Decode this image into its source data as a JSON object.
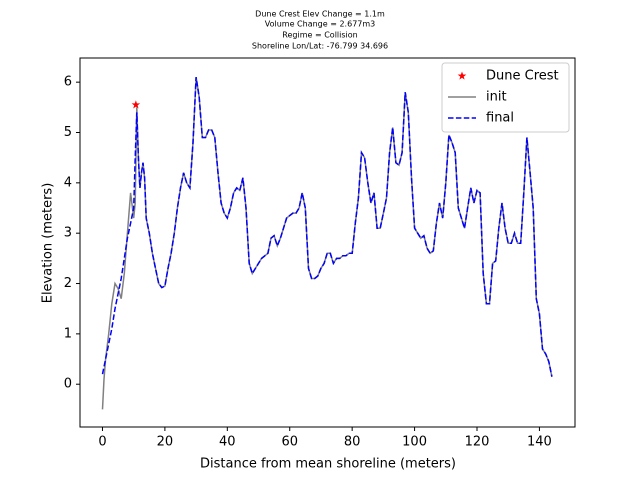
{
  "chart_data": {
    "type": "line",
    "title": [
      "Dune Crest Elev Change = 1.1m",
      "Volume Change = 2.677m3",
      "Regime = Collision",
      "Shoreline Lon/Lat: -76.799 34.696"
    ],
    "xlabel": "Distance from mean shoreline (meters)",
    "ylabel": "Elevation (meters)",
    "xlim": [
      -7.2,
      151.4
    ],
    "ylim": [
      -0.85,
      6.48
    ],
    "xticks": [
      0,
      20,
      40,
      60,
      80,
      100,
      120,
      140
    ],
    "yticks": [
      0,
      1,
      2,
      3,
      4,
      5,
      6
    ],
    "legend": "upper right",
    "series": [
      {
        "name": "Dune Crest",
        "color": "#ff0000",
        "marker": "star",
        "x": [
          10.7
        ],
        "values": [
          5.55
        ]
      },
      {
        "name": "init",
        "color": "#808080",
        "style": "solid",
        "x": [
          0,
          0.5,
          1,
          2,
          3,
          4,
          5,
          6,
          7,
          8,
          9,
          10,
          10.5,
          11,
          11.5,
          12,
          12.5,
          13,
          13.5,
          14,
          15,
          16,
          17,
          18,
          19,
          20,
          21,
          22,
          23,
          24,
          25,
          26,
          27,
          28,
          29,
          30,
          31,
          32,
          33,
          34,
          35,
          36,
          37,
          38,
          39,
          40,
          41,
          42,
          43,
          44,
          45,
          46,
          47,
          48,
          49,
          50,
          51,
          52,
          53,
          54,
          55,
          56,
          57,
          58,
          59,
          60,
          61,
          62,
          63,
          64,
          65,
          66,
          67,
          68,
          69,
          70,
          71,
          72,
          73,
          74,
          75,
          76,
          77,
          78,
          79,
          80,
          81,
          82,
          83,
          84,
          85,
          86,
          87,
          88,
          89,
          90,
          91,
          92,
          93,
          94,
          95,
          96,
          97,
          98,
          99,
          100,
          101,
          102,
          103,
          104,
          105,
          106,
          107,
          108,
          109,
          110,
          111,
          112,
          113,
          114,
          115,
          116,
          117,
          118,
          119,
          120,
          121,
          122,
          123,
          124,
          125,
          126,
          127,
          128,
          129,
          130,
          131,
          132,
          133,
          134,
          135,
          136,
          137,
          138,
          139,
          140,
          141,
          142,
          143,
          144
        ],
        "values": [
          -0.5,
          0.1,
          0.5,
          1.0,
          1.6,
          2.0,
          1.9,
          1.7,
          2.2,
          3.0,
          3.8,
          3.3,
          3.6,
          5.5,
          4.5,
          3.9,
          4.2,
          4.4,
          4.1,
          3.3,
          3.0,
          2.6,
          2.3,
          2.0,
          1.92,
          1.95,
          2.3,
          2.6,
          3.0,
          3.5,
          3.9,
          4.2,
          4.0,
          3.9,
          4.8,
          6.1,
          5.7,
          4.9,
          4.9,
          5.05,
          5.05,
          4.9,
          4.2,
          3.6,
          3.4,
          3.3,
          3.5,
          3.8,
          3.9,
          3.85,
          4.1,
          3.5,
          2.4,
          2.2,
          2.3,
          2.4,
          2.5,
          2.55,
          2.6,
          2.9,
          2.95,
          2.75,
          2.9,
          3.1,
          3.3,
          3.35,
          3.4,
          3.4,
          3.5,
          3.8,
          3.5,
          2.3,
          2.1,
          2.1,
          2.15,
          2.3,
          2.4,
          2.6,
          2.6,
          2.4,
          2.5,
          2.5,
          2.55,
          2.55,
          2.6,
          2.6,
          3.2,
          3.7,
          4.6,
          4.5,
          4.0,
          3.6,
          3.8,
          3.1,
          3.1,
          3.4,
          3.7,
          4.6,
          5.1,
          4.4,
          4.35,
          4.6,
          5.8,
          5.4,
          4.1,
          3.1,
          3.0,
          2.9,
          2.95,
          2.7,
          2.6,
          2.65,
          3.2,
          3.6,
          3.3,
          4.0,
          4.95,
          4.8,
          4.6,
          3.5,
          3.3,
          3.1,
          3.5,
          3.9,
          3.6,
          3.85,
          3.8,
          2.2,
          1.6,
          1.6,
          2.4,
          2.45,
          3.1,
          3.6,
          3.1,
          2.8,
          2.8,
          3.0,
          2.8,
          2.8,
          3.8,
          4.9,
          4.2,
          3.5,
          1.7,
          1.4,
          0.7,
          0.6,
          0.45,
          0.15
        ]
      },
      {
        "name": "final",
        "color": "#0000ff",
        "style": "dashed",
        "x": [
          0,
          1,
          2,
          3,
          4,
          5,
          6,
          7,
          8,
          9,
          10,
          10.5,
          11,
          11.5,
          12,
          12.5,
          13,
          13.5,
          14,
          15,
          16,
          17,
          18,
          19,
          20,
          21,
          22,
          23,
          24,
          25,
          26,
          27,
          28,
          29,
          30,
          31,
          32,
          33,
          34,
          35,
          36,
          37,
          38,
          39,
          40,
          41,
          42,
          43,
          44,
          45,
          46,
          47,
          48,
          49,
          50,
          51,
          52,
          53,
          54,
          55,
          56,
          57,
          58,
          59,
          60,
          61,
          62,
          63,
          64,
          65,
          66,
          67,
          68,
          69,
          70,
          71,
          72,
          73,
          74,
          75,
          76,
          77,
          78,
          79,
          80,
          81,
          82,
          83,
          84,
          85,
          86,
          87,
          88,
          89,
          90,
          91,
          92,
          93,
          94,
          95,
          96,
          97,
          98,
          99,
          100,
          101,
          102,
          103,
          104,
          105,
          106,
          107,
          108,
          109,
          110,
          111,
          112,
          113,
          114,
          115,
          116,
          117,
          118,
          119,
          120,
          121,
          122,
          123,
          124,
          125,
          126,
          127,
          128,
          129,
          130,
          131,
          132,
          133,
          134,
          135,
          136,
          137,
          138,
          139,
          140,
          141,
          142,
          143,
          144
        ],
        "values": [
          0.2,
          0.5,
          0.8,
          1.1,
          1.5,
          1.8,
          2.1,
          2.5,
          2.9,
          3.2,
          3.5,
          4.5,
          5.4,
          4.5,
          3.9,
          4.2,
          4.4,
          4.1,
          3.3,
          3.0,
          2.6,
          2.3,
          2.0,
          1.92,
          1.95,
          2.3,
          2.6,
          3.0,
          3.5,
          3.9,
          4.2,
          4.0,
          3.9,
          4.8,
          6.1,
          5.7,
          4.9,
          4.9,
          5.05,
          5.05,
          4.9,
          4.2,
          3.6,
          3.4,
          3.3,
          3.5,
          3.8,
          3.9,
          3.85,
          4.1,
          3.5,
          2.4,
          2.2,
          2.3,
          2.4,
          2.5,
          2.55,
          2.6,
          2.9,
          2.95,
          2.75,
          2.9,
          3.1,
          3.3,
          3.35,
          3.4,
          3.4,
          3.5,
          3.8,
          3.5,
          2.3,
          2.1,
          2.1,
          2.15,
          2.3,
          2.4,
          2.6,
          2.6,
          2.4,
          2.5,
          2.5,
          2.55,
          2.55,
          2.6,
          2.6,
          3.2,
          3.7,
          4.6,
          4.5,
          4.0,
          3.6,
          3.8,
          3.1,
          3.1,
          3.4,
          3.7,
          4.6,
          5.1,
          4.4,
          4.35,
          4.6,
          5.8,
          5.4,
          4.1,
          3.1,
          3.0,
          2.9,
          2.95,
          2.7,
          2.6,
          2.65,
          3.2,
          3.6,
          3.3,
          4.0,
          4.95,
          4.8,
          4.6,
          3.5,
          3.3,
          3.1,
          3.5,
          3.9,
          3.6,
          3.85,
          3.8,
          2.2,
          1.6,
          1.6,
          2.4,
          2.45,
          3.1,
          3.6,
          3.1,
          2.8,
          2.8,
          3.0,
          2.8,
          2.8,
          3.8,
          4.9,
          4.2,
          3.5,
          1.7,
          1.4,
          0.7,
          0.6,
          0.45,
          0.15
        ]
      }
    ]
  }
}
